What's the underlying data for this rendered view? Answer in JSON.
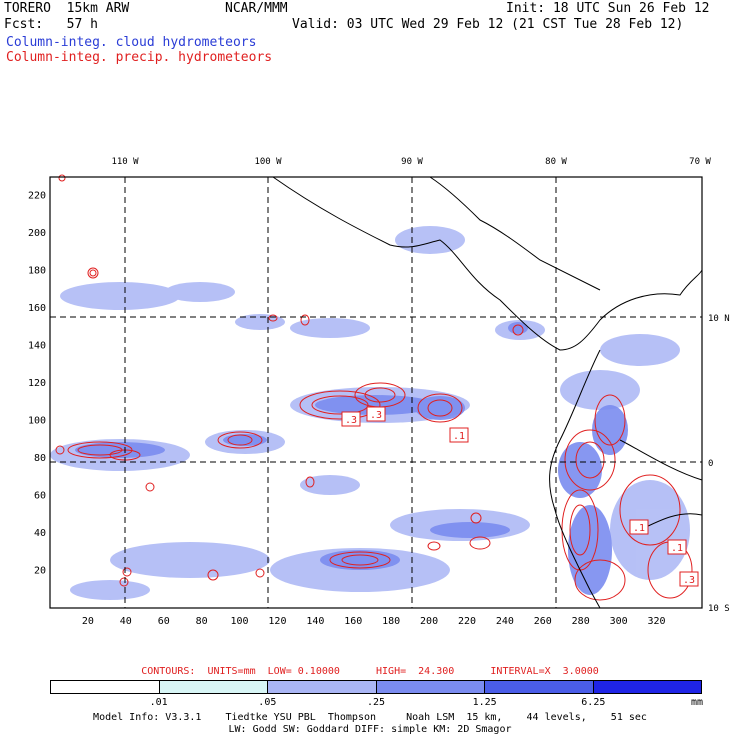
{
  "header": {
    "model": "TORERO  15km ARW",
    "center": "NCAR/MMM",
    "init": "Init: 18 UTC Sun 26 Feb 12",
    "fcst": "Fcst:   57 h",
    "valid": "Valid: 03 UTC Wed 29 Feb 12 (21 CST Tue 28 Feb 12)",
    "field1": "Column-integ. cloud hydrometeors",
    "field2": "Column-integ. precip. hydrometeors"
  },
  "colors": {
    "cloud": "#7b8cf0",
    "cloud_light": "#aab6f5",
    "precip": "#e02020",
    "land": "#000000",
    "grid": "#000000"
  },
  "axes": {
    "top_lon_labels": [
      "110 W",
      "100 W",
      "90 W",
      "80 W",
      "70 W"
    ],
    "right_lat_labels": [
      "10 N",
      "0",
      "10 S"
    ],
    "left_y_ticks": [
      "20",
      "40",
      "60",
      "80",
      "100",
      "120",
      "140",
      "160",
      "180",
      "200",
      "220"
    ],
    "bottom_x_ticks": [
      "20",
      "40",
      "60",
      "80",
      "100",
      "120",
      "140",
      "160",
      "180",
      "200",
      "220",
      "240",
      "260",
      "280",
      "300",
      "320"
    ]
  },
  "map_labels": [
    {
      "text": ".3"
    },
    {
      "text": ".3"
    },
    {
      "text": ".1"
    },
    {
      "text": ".1"
    },
    {
      "text": ".1"
    },
    {
      "text": ".3"
    }
  ],
  "contour_info": "CONTOURS:  UNITS=mm  LOW= 0.10000      HIGH=  24.300      INTERVAL=X  3.0000",
  "colorbar": {
    "labels": [
      ".01",
      ".05",
      ".25",
      "1.25",
      "6.25"
    ],
    "unit": "mm",
    "colors": [
      "#ffffff",
      "#d8f6f6",
      "#aab6f5",
      "#7b8cf0",
      "#4a5de8",
      "#1f24e6"
    ]
  },
  "footer": {
    "line1": "Model Info: V3.3.1    Tiedtke YSU PBL  Thompson     Noah LSM  15 km,    44 levels,    51 sec",
    "line2": "LW: Godd SW: Goddard DIFF: simple KM: 2D Smagor"
  }
}
